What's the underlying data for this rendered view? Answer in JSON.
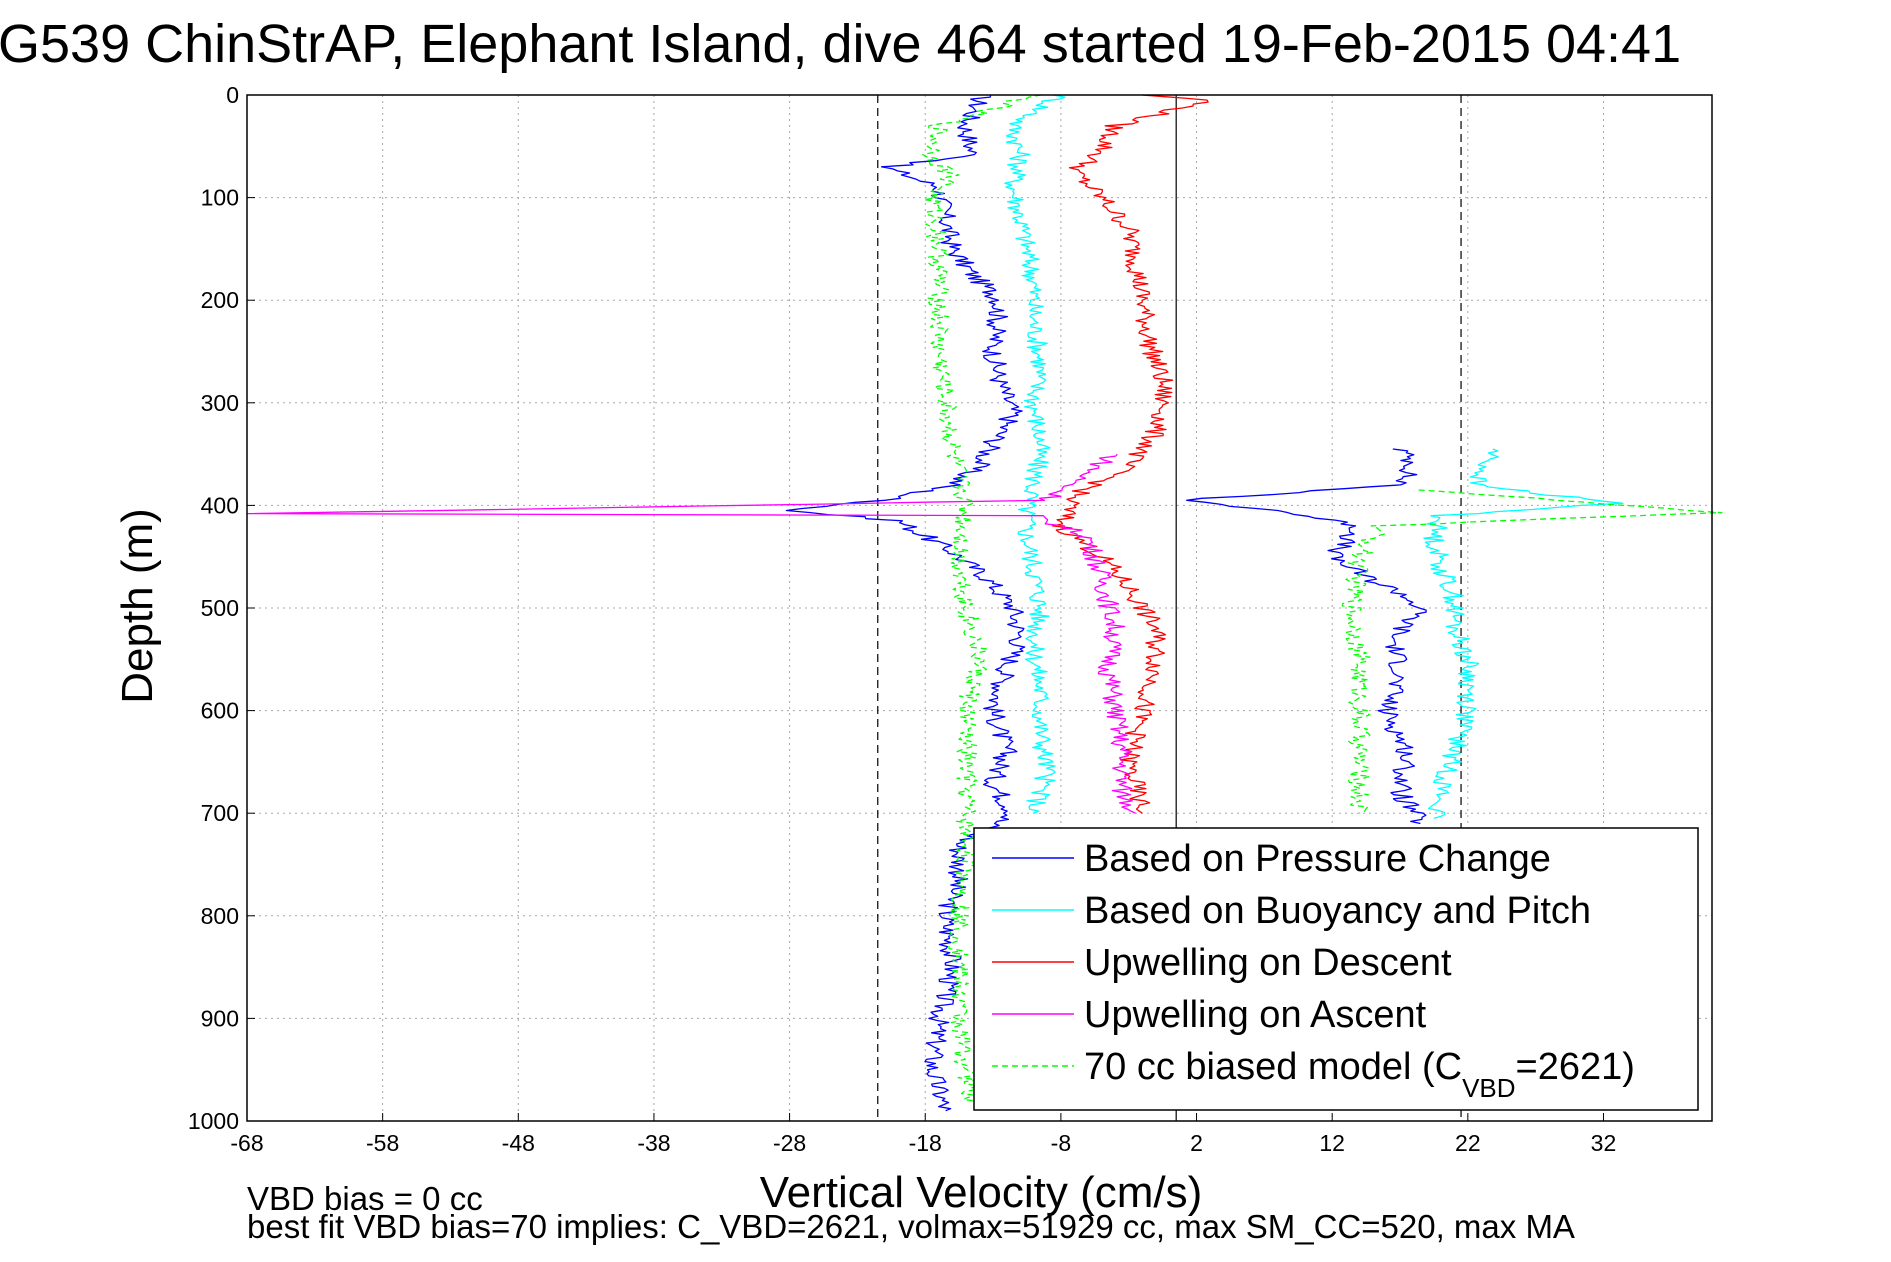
{
  "chart_data": {
    "type": "line",
    "title": "G539 ChinStrAP, Elephant Island, dive 464 started 19-Feb-2015 04:41",
    "xlabel": "Vertical Velocity (cm/s)",
    "ylabel": "Depth (m)",
    "xlim": [
      -68,
      40
    ],
    "ylim": [
      0,
      1000
    ],
    "y_reversed": true,
    "grid": true,
    "xticks": [
      -68,
      -58,
      -48,
      -38,
      -28,
      -18,
      -8,
      2,
      12,
      22,
      32
    ],
    "yticks": [
      0,
      100,
      200,
      300,
      400,
      500,
      600,
      700,
      800,
      900,
      1000
    ],
    "reference_lines": [
      {
        "x": -21.5,
        "style": "dashed"
      },
      {
        "x": 0.5,
        "style": "solid"
      },
      {
        "x": 21.5,
        "style": "dashed"
      }
    ],
    "legend": {
      "position": "bottom-right",
      "entries": [
        {
          "prefix": "Based on Pressure Change",
          "sub": "",
          "suffix": "",
          "color": "#0000ff",
          "dash": ""
        },
        {
          "prefix": "Based on Buoyancy and Pitch",
          "sub": "",
          "suffix": "",
          "color": "#00ffff",
          "dash": ""
        },
        {
          "prefix": "Upwelling on Descent",
          "sub": "",
          "suffix": "",
          "color": "#ff0000",
          "dash": ""
        },
        {
          "prefix": "Upwelling on Ascent",
          "sub": "",
          "suffix": "",
          "color": "#ff00ff",
          "dash": ""
        },
        {
          "prefix": "70 cc biased model (C",
          "sub": "VBD",
          "suffix": "=2621)",
          "color": "#00ff00",
          "dash": "6,4"
        }
      ]
    },
    "series": [
      {
        "name": "Based on Pressure Change",
        "color": "#0000ff",
        "dash": "",
        "segments": [
          [
            [
              -13.8,
              0
            ],
            [
              -15,
              30
            ],
            [
              -14.5,
              60
            ],
            [
              -21,
              70
            ],
            [
              -17,
              90
            ],
            [
              -16.5,
              120
            ],
            [
              -16,
              150
            ],
            [
              -14.5,
              175
            ],
            [
              -12.5,
              200
            ],
            [
              -13,
              250
            ],
            [
              -12.5,
              280
            ],
            [
              -11.5,
              310
            ],
            [
              -12.5,
              330
            ],
            [
              -14,
              360
            ],
            [
              -16,
              380
            ],
            [
              -21,
              395
            ],
            [
              -28,
              405
            ],
            [
              -20,
              415
            ],
            [
              -16,
              445
            ],
            [
              -13.5,
              470
            ],
            [
              -11.5,
              500
            ],
            [
              -11,
              530
            ],
            [
              -12,
              560
            ],
            [
              -13,
              600
            ],
            [
              -12,
              640
            ],
            [
              -13,
              670
            ],
            [
              -11.5,
              700
            ],
            [
              -15.5,
              730
            ],
            [
              -15.5,
              760
            ],
            [
              -16.5,
              800
            ],
            [
              -16,
              850
            ],
            [
              -17,
              900
            ],
            [
              -17.5,
              950
            ],
            [
              -16.5,
              990
            ]
          ],
          [
            [
              17,
              345
            ],
            [
              18,
              360
            ],
            [
              17,
              380
            ],
            [
              1,
              395
            ],
            [
              8,
              405
            ],
            [
              14,
              420
            ],
            [
              12,
              450
            ],
            [
              14.5,
              470
            ],
            [
              17,
              485
            ],
            [
              18.5,
              500
            ],
            [
              16.5,
              530
            ],
            [
              17,
              560
            ],
            [
              16,
              600
            ],
            [
              17.5,
              640
            ],
            [
              17,
              680
            ],
            [
              18.5,
              710
            ]
          ]
        ]
      },
      {
        "name": "Based on Buoyancy and Pitch",
        "color": "#00ffff",
        "dash": "",
        "segments": [
          [
            [
              -8,
              0
            ],
            [
              -11.5,
              30
            ],
            [
              -11,
              60
            ],
            [
              -11.5,
              90
            ],
            [
              -11,
              120
            ],
            [
              -10.5,
              150
            ],
            [
              -10,
              180
            ],
            [
              -10,
              220
            ],
            [
              -9.5,
              260
            ],
            [
              -10,
              300
            ],
            [
              -9.5,
              340
            ],
            [
              -10,
              380
            ],
            [
              -10.5,
              400
            ],
            [
              -10.5,
              430
            ],
            [
              -10,
              460
            ],
            [
              -9.5,
              500
            ],
            [
              -10,
              540
            ],
            [
              -9.5,
              580
            ],
            [
              -9.5,
              620
            ],
            [
              -9,
              660
            ],
            [
              -10,
              700
            ]
          ],
          [
            [
              24,
              345
            ],
            [
              22.5,
              380
            ],
            [
              33,
              398
            ],
            [
              20,
              410
            ],
            [
              19.5,
              430
            ],
            [
              20,
              460
            ],
            [
              21,
              490
            ],
            [
              21,
              520
            ],
            [
              22,
              550
            ],
            [
              22,
              600
            ],
            [
              21,
              640
            ],
            [
              20,
              680
            ],
            [
              19.5,
              705
            ]
          ]
        ]
      },
      {
        "name": "Upwelling on Descent",
        "color": "#ff0000",
        "dash": "",
        "segments": [
          [
            [
              -2,
              0
            ],
            [
              3,
              5
            ],
            [
              -4,
              30
            ],
            [
              -5,
              55
            ],
            [
              -7,
              75
            ],
            [
              -5,
              100
            ],
            [
              -3,
              130
            ],
            [
              -2.5,
              160
            ],
            [
              -2,
              200
            ],
            [
              -1.5,
              240
            ],
            [
              -0.5,
              280
            ],
            [
              -0.5,
              310
            ],
            [
              -1.5,
              340
            ],
            [
              -4,
              370
            ],
            [
              -7,
              390
            ],
            [
              -8,
              420
            ],
            [
              -5,
              450
            ],
            [
              -3,
              480
            ],
            [
              -1,
              520
            ],
            [
              -1,
              560
            ],
            [
              -2,
              600
            ],
            [
              -3,
              650
            ],
            [
              -2,
              700
            ]
          ]
        ]
      },
      {
        "name": "Upwelling on Ascent",
        "color": "#ff00ff",
        "dash": "",
        "segments": [
          [
            [
              -4,
              350
            ],
            [
              -9,
              395
            ],
            [
              -68,
              408
            ],
            [
              -10,
              410
            ],
            [
              -6,
              430
            ],
            [
              -5,
              470
            ],
            [
              -4,
              520
            ],
            [
              -4.5,
              560
            ],
            [
              -4,
              600
            ],
            [
              -3.5,
              640
            ],
            [
              -3.5,
              680
            ],
            [
              -2.5,
              700
            ]
          ]
        ]
      },
      {
        "name": "70 cc biased model (CVBD=2621)",
        "color": "#00ff00",
        "dash": "6,4",
        "segments": [
          [
            [
              -10,
              0
            ],
            [
              -17,
              30
            ],
            [
              -17.5,
              60
            ],
            [
              -16,
              80
            ],
            [
              -17.5,
              100
            ],
            [
              -17,
              150
            ],
            [
              -17,
              200
            ],
            [
              -17,
              250
            ],
            [
              -16.5,
              300
            ],
            [
              -16,
              350
            ],
            [
              -15,
              400
            ],
            [
              -15.5,
              450
            ],
            [
              -15,
              500
            ],
            [
              -14,
              550
            ],
            [
              -15,
              600
            ],
            [
              -15,
              650
            ],
            [
              -15,
              700
            ],
            [
              -15,
              750
            ],
            [
              -15.5,
              800
            ],
            [
              -15.5,
              850
            ],
            [
              -15.5,
              900
            ],
            [
              -15,
              950
            ],
            [
              -14.5,
              985
            ]
          ],
          [
            [
              19,
              385
            ],
            [
              40,
              407
            ],
            [
              15.5,
              420
            ],
            [
              14,
              450
            ],
            [
              13.5,
              500
            ],
            [
              14,
              550
            ],
            [
              14,
              600
            ],
            [
              14,
              650
            ],
            [
              14,
              700
            ]
          ]
        ]
      }
    ],
    "notes": [
      "VBD bias = 0 cc",
      "best fit VBD bias=70 implies: C_VBD=2621, volmax=51929 cc, max SM_CC=520, max MA"
    ]
  }
}
